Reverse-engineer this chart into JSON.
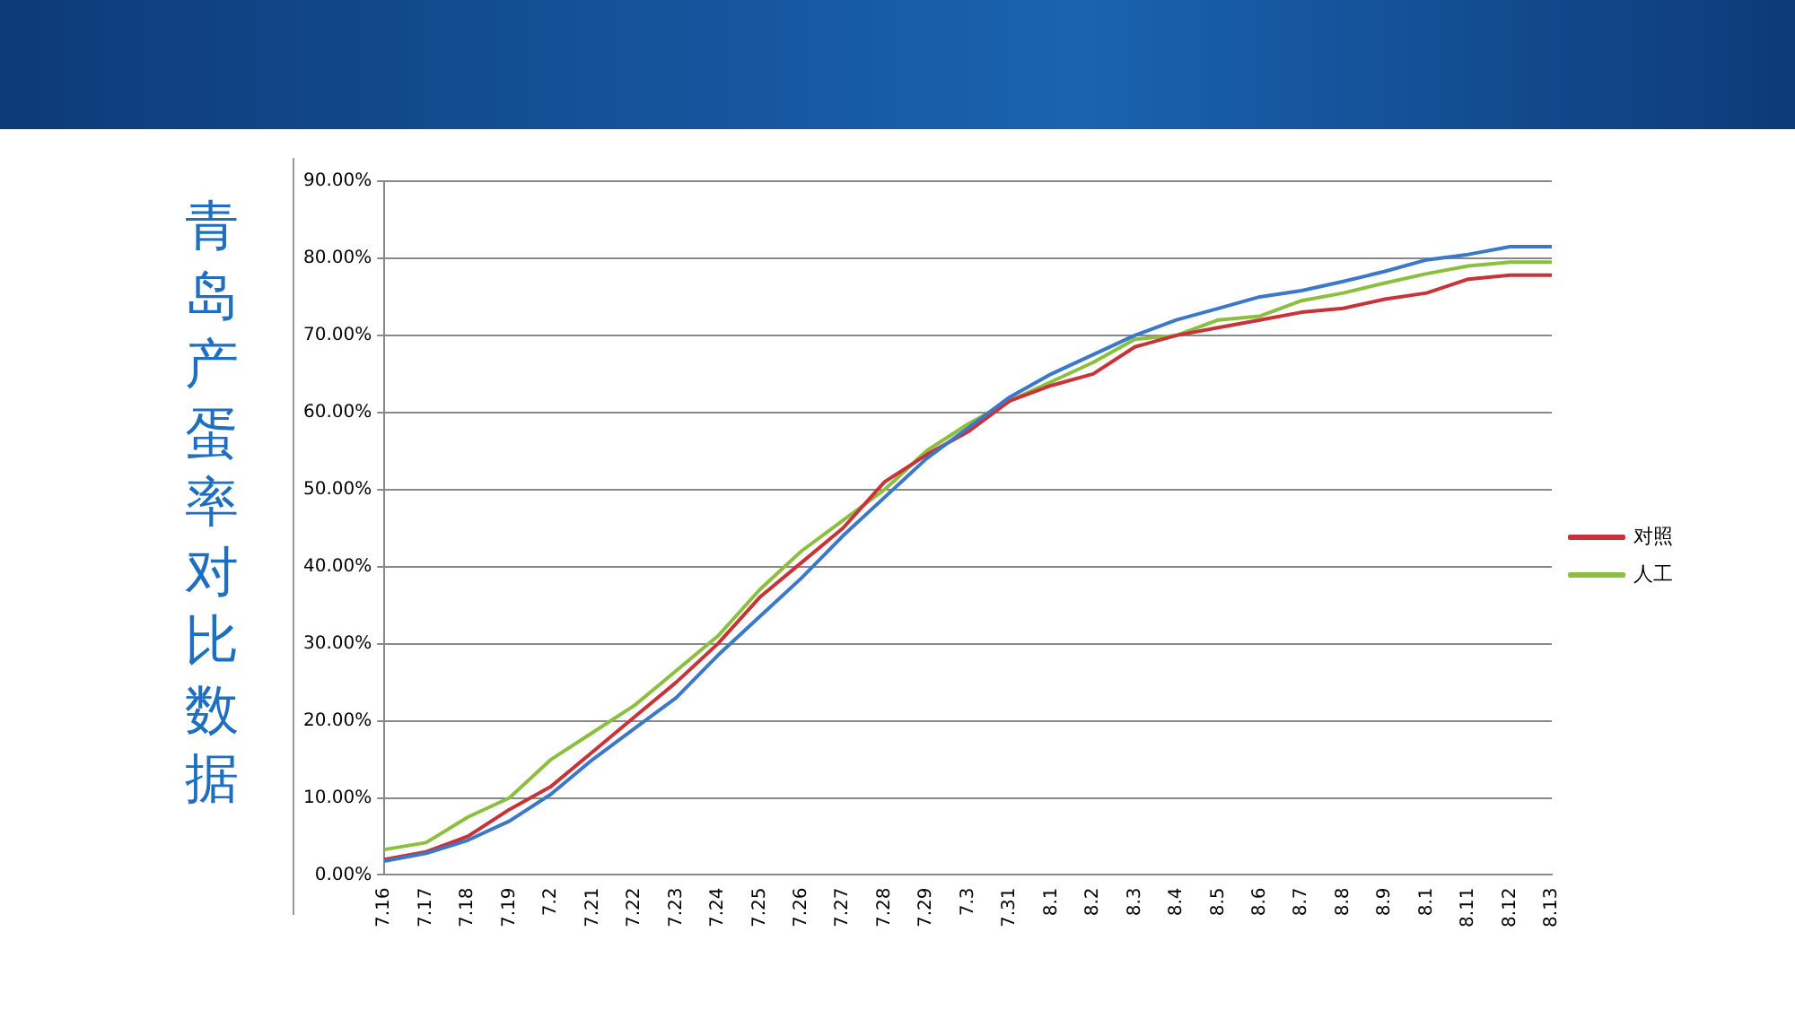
{
  "chart_data": {
    "type": "line",
    "title": "青岛产蛋率对比数据",
    "categories": [
      "7.16",
      "7.17",
      "7.18",
      "7.19",
      "7.2",
      "7.21",
      "7.22",
      "7.23",
      "7.24",
      "7.25",
      "7.26",
      "7.27",
      "7.28",
      "7.29",
      "7.3",
      "7.31",
      "8.1",
      "8.2",
      "8.3",
      "8.4",
      "8.5",
      "8.6",
      "8.7",
      "8.8",
      "8.9",
      "8.1",
      "8.11",
      "8.12",
      "8.13"
    ],
    "series": [
      {
        "color": "#3a78c9",
        "values": [
          1.8,
          2.8,
          4.5,
          7,
          10.5,
          15,
          19,
          23,
          28.5,
          33.5,
          38.5,
          44,
          49,
          54,
          58,
          62,
          65,
          67.5,
          70,
          72,
          73.5,
          75,
          75.8,
          77,
          78.3,
          79.8,
          80.5,
          81.5,
          81.5
        ]
      },
      {
        "name": "对照",
        "color": "#c8333a",
        "values": [
          2,
          3,
          5,
          8.5,
          11.5,
          16,
          20.5,
          25,
          30,
          36,
          40.5,
          45,
          51,
          54.5,
          57.5,
          61.5,
          63.5,
          65,
          68.5,
          70,
          71,
          72,
          73,
          73.5,
          74.7,
          75.5,
          77.3,
          77.8,
          77.8
        ]
      },
      {
        "name": "人工",
        "color": "#8cbf3f",
        "values": [
          3.3,
          4.2,
          7.5,
          10,
          15,
          18.5,
          22,
          26.5,
          31,
          37,
          42,
          46,
          50,
          55,
          58.5,
          61.5,
          64,
          66.5,
          69.5,
          70,
          72,
          72.5,
          74.5,
          75.5,
          76.8,
          78,
          79,
          79.5,
          79.5
        ]
      }
    ],
    "ylim": [
      0,
      90
    ],
    "yticks": [
      {
        "value": 0,
        "label": "0.00%"
      },
      {
        "value": 10,
        "label": "10.00%"
      },
      {
        "value": 20,
        "label": "20.00%"
      },
      {
        "value": 30,
        "label": "30.00%"
      },
      {
        "value": 40,
        "label": "40.00%"
      },
      {
        "value": 50,
        "label": "50.00%"
      },
      {
        "value": 60,
        "label": "60.00%"
      },
      {
        "value": 70,
        "label": "70.00%"
      },
      {
        "value": 80,
        "label": "80.00%"
      },
      {
        "value": 90,
        "label": "90.00%"
      }
    ],
    "grid": "y",
    "legend": "right",
    "marker": "none",
    "line_style": "solid"
  }
}
